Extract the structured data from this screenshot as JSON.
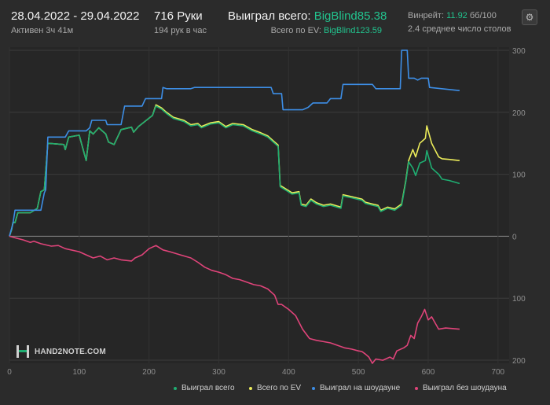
{
  "header": {
    "date_range": "28.04.2022 - 29.04.2022",
    "active_time": "Активен 3ч 41м",
    "hands": "716 Руки",
    "hands_per_hour": "194 рук в час",
    "won_total_label": "Выиграл всего:",
    "won_total_value": "BigBlind85.38",
    "ev_total_label": "Всего по EV:",
    "ev_total_value": "BigBlind123.59",
    "winrate_label": "Винрейт:",
    "winrate_value": "11.92",
    "winrate_unit": "бб/100",
    "avg_tables": "2.4 среднее число столов",
    "settings_icon": "gear-icon"
  },
  "logo": {
    "text": "HAND2NOTE.COM"
  },
  "colors": {
    "won_total": "#1fae72",
    "ev": "#ecec5a",
    "showdown": "#3d8ee6",
    "non_showdown": "#e0447a",
    "background": "#2b2b2b",
    "plot_bg": "#262626"
  },
  "chart_data": {
    "type": "line",
    "title": "",
    "xlabel": "",
    "ylabel": "",
    "xlim": [
      0,
      716
    ],
    "ylim": [
      -205,
      305
    ],
    "x_ticks": [
      0,
      100,
      200,
      300,
      400,
      500,
      600,
      700
    ],
    "y_ticks": [
      {
        "value": 300,
        "label": "300"
      },
      {
        "value": 200,
        "label": "200"
      },
      {
        "value": 100,
        "label": "100"
      },
      {
        "value": 0,
        "label": "0"
      },
      {
        "value": -100,
        "label": "100"
      },
      {
        "value": -200,
        "label": "200"
      }
    ],
    "grid": true,
    "legend_position": "bottom",
    "series": [
      {
        "name": "Выиграл всего",
        "color": "#1fae72",
        "points": [
          [
            0,
            0
          ],
          [
            3,
            10
          ],
          [
            5,
            22
          ],
          [
            8,
            22
          ],
          [
            12,
            38
          ],
          [
            30,
            38
          ],
          [
            40,
            45
          ],
          [
            45,
            72
          ],
          [
            50,
            75
          ],
          [
            52,
            105
          ],
          [
            55,
            150
          ],
          [
            78,
            148
          ],
          [
            80,
            140
          ],
          [
            85,
            160
          ],
          [
            100,
            163
          ],
          [
            110,
            122
          ],
          [
            115,
            170
          ],
          [
            120,
            165
          ],
          [
            128,
            175
          ],
          [
            138,
            165
          ],
          [
            142,
            152
          ],
          [
            150,
            148
          ],
          [
            160,
            172
          ],
          [
            175,
            176
          ],
          [
            178,
            168
          ],
          [
            185,
            177
          ],
          [
            205,
            195
          ],
          [
            210,
            210
          ],
          [
            218,
            205
          ],
          [
            225,
            198
          ],
          [
            235,
            190
          ],
          [
            250,
            185
          ],
          [
            260,
            178
          ],
          [
            270,
            180
          ],
          [
            275,
            175
          ],
          [
            288,
            181
          ],
          [
            300,
            183
          ],
          [
            310,
            175
          ],
          [
            320,
            180
          ],
          [
            335,
            178
          ],
          [
            348,
            170
          ],
          [
            360,
            165
          ],
          [
            370,
            160
          ],
          [
            380,
            150
          ],
          [
            385,
            145
          ],
          [
            388,
            80
          ],
          [
            395,
            75
          ],
          [
            405,
            68
          ],
          [
            415,
            70
          ],
          [
            418,
            50
          ],
          [
            425,
            48
          ],
          [
            432,
            58
          ],
          [
            440,
            52
          ],
          [
            450,
            48
          ],
          [
            460,
            50
          ],
          [
            475,
            45
          ],
          [
            478,
            65
          ],
          [
            490,
            62
          ],
          [
            505,
            58
          ],
          [
            510,
            53
          ],
          [
            520,
            50
          ],
          [
            528,
            48
          ],
          [
            532,
            40
          ],
          [
            542,
            45
          ],
          [
            552,
            42
          ],
          [
            562,
            50
          ],
          [
            568,
            88
          ],
          [
            572,
            120
          ],
          [
            578,
            110
          ],
          [
            582,
            98
          ],
          [
            588,
            118
          ],
          [
            596,
            122
          ],
          [
            598,
            138
          ],
          [
            605,
            110
          ],
          [
            615,
            100
          ],
          [
            620,
            92
          ],
          [
            630,
            90
          ],
          [
            645,
            85
          ]
        ]
      },
      {
        "name": "Всего по EV",
        "color": "#ecec5a",
        "points": [
          [
            0,
            0
          ],
          [
            3,
            10
          ],
          [
            5,
            22
          ],
          [
            8,
            22
          ],
          [
            12,
            38
          ],
          [
            30,
            38
          ],
          [
            40,
            45
          ],
          [
            45,
            72
          ],
          [
            50,
            75
          ],
          [
            52,
            105
          ],
          [
            55,
            150
          ],
          [
            78,
            148
          ],
          [
            80,
            140
          ],
          [
            85,
            160
          ],
          [
            100,
            163
          ],
          [
            110,
            122
          ],
          [
            115,
            170
          ],
          [
            120,
            165
          ],
          [
            128,
            175
          ],
          [
            138,
            165
          ],
          [
            142,
            152
          ],
          [
            150,
            148
          ],
          [
            160,
            172
          ],
          [
            175,
            176
          ],
          [
            178,
            168
          ],
          [
            185,
            177
          ],
          [
            205,
            195
          ],
          [
            210,
            212
          ],
          [
            218,
            207
          ],
          [
            225,
            200
          ],
          [
            235,
            192
          ],
          [
            250,
            187
          ],
          [
            260,
            180
          ],
          [
            270,
            182
          ],
          [
            275,
            177
          ],
          [
            288,
            183
          ],
          [
            300,
            185
          ],
          [
            310,
            177
          ],
          [
            320,
            182
          ],
          [
            335,
            180
          ],
          [
            348,
            172
          ],
          [
            360,
            167
          ],
          [
            370,
            162
          ],
          [
            380,
            152
          ],
          [
            385,
            147
          ],
          [
            388,
            82
          ],
          [
            395,
            77
          ],
          [
            405,
            70
          ],
          [
            415,
            72
          ],
          [
            418,
            52
          ],
          [
            425,
            50
          ],
          [
            432,
            60
          ],
          [
            440,
            54
          ],
          [
            450,
            50
          ],
          [
            460,
            52
          ],
          [
            475,
            47
          ],
          [
            478,
            67
          ],
          [
            490,
            64
          ],
          [
            505,
            60
          ],
          [
            510,
            55
          ],
          [
            520,
            52
          ],
          [
            528,
            50
          ],
          [
            532,
            42
          ],
          [
            542,
            47
          ],
          [
            552,
            44
          ],
          [
            562,
            52
          ],
          [
            568,
            90
          ],
          [
            572,
            122
          ],
          [
            578,
            140
          ],
          [
            582,
            128
          ],
          [
            588,
            150
          ],
          [
            596,
            158
          ],
          [
            598,
            178
          ],
          [
            605,
            150
          ],
          [
            615,
            128
          ],
          [
            620,
            125
          ],
          [
            630,
            124
          ],
          [
            645,
            122
          ]
        ]
      },
      {
        "name": "Выиграл на шоудауне",
        "color": "#3d8ee6",
        "points": [
          [
            0,
            0
          ],
          [
            5,
            20
          ],
          [
            8,
            42
          ],
          [
            45,
            42
          ],
          [
            50,
            70
          ],
          [
            52,
            75
          ],
          [
            55,
            160
          ],
          [
            80,
            160
          ],
          [
            85,
            170
          ],
          [
            110,
            170
          ],
          [
            115,
            175
          ],
          [
            118,
            187
          ],
          [
            138,
            187
          ],
          [
            140,
            180
          ],
          [
            160,
            180
          ],
          [
            165,
            210
          ],
          [
            190,
            210
          ],
          [
            195,
            222
          ],
          [
            218,
            222
          ],
          [
            220,
            240
          ],
          [
            225,
            238
          ],
          [
            260,
            238
          ],
          [
            265,
            240
          ],
          [
            375,
            240
          ],
          [
            378,
            230
          ],
          [
            390,
            230
          ],
          [
            392,
            204
          ],
          [
            420,
            204
          ],
          [
            428,
            208
          ],
          [
            435,
            215
          ],
          [
            455,
            215
          ],
          [
            460,
            222
          ],
          [
            475,
            222
          ],
          [
            478,
            245
          ],
          [
            520,
            245
          ],
          [
            525,
            238
          ],
          [
            560,
            238
          ],
          [
            562,
            300
          ],
          [
            570,
            300
          ],
          [
            572,
            255
          ],
          [
            580,
            255
          ],
          [
            585,
            252
          ],
          [
            590,
            255
          ],
          [
            600,
            255
          ],
          [
            602,
            240
          ],
          [
            645,
            235
          ]
        ]
      },
      {
        "name": "Выиграл без шоудауна",
        "color": "#e0447a",
        "points": [
          [
            0,
            0
          ],
          [
            10,
            -3
          ],
          [
            20,
            -6
          ],
          [
            30,
            -10
          ],
          [
            35,
            -8
          ],
          [
            45,
            -12
          ],
          [
            60,
            -16
          ],
          [
            70,
            -15
          ],
          [
            80,
            -20
          ],
          [
            100,
            -25
          ],
          [
            110,
            -30
          ],
          [
            120,
            -35
          ],
          [
            130,
            -32
          ],
          [
            140,
            -38
          ],
          [
            150,
            -35
          ],
          [
            160,
            -38
          ],
          [
            175,
            -40
          ],
          [
            180,
            -35
          ],
          [
            190,
            -30
          ],
          [
            200,
            -20
          ],
          [
            210,
            -15
          ],
          [
            220,
            -22
          ],
          [
            230,
            -25
          ],
          [
            245,
            -30
          ],
          [
            260,
            -35
          ],
          [
            270,
            -42
          ],
          [
            280,
            -50
          ],
          [
            290,
            -55
          ],
          [
            300,
            -58
          ],
          [
            310,
            -62
          ],
          [
            320,
            -68
          ],
          [
            330,
            -70
          ],
          [
            340,
            -74
          ],
          [
            350,
            -78
          ],
          [
            360,
            -80
          ],
          [
            370,
            -85
          ],
          [
            380,
            -95
          ],
          [
            385,
            -110
          ],
          [
            390,
            -110
          ],
          [
            400,
            -118
          ],
          [
            410,
            -128
          ],
          [
            420,
            -150
          ],
          [
            430,
            -165
          ],
          [
            440,
            -168
          ],
          [
            450,
            -170
          ],
          [
            460,
            -172
          ],
          [
            470,
            -176
          ],
          [
            480,
            -180
          ],
          [
            490,
            -182
          ],
          [
            500,
            -185
          ],
          [
            505,
            -186
          ],
          [
            510,
            -190
          ],
          [
            515,
            -195
          ],
          [
            520,
            -205
          ],
          [
            525,
            -198
          ],
          [
            535,
            -200
          ],
          [
            545,
            -195
          ],
          [
            550,
            -198
          ],
          [
            555,
            -185
          ],
          [
            565,
            -180
          ],
          [
            570,
            -176
          ],
          [
            575,
            -160
          ],
          [
            580,
            -165
          ],
          [
            585,
            -140
          ],
          [
            590,
            -130
          ],
          [
            595,
            -118
          ],
          [
            600,
            -135
          ],
          [
            605,
            -130
          ],
          [
            615,
            -150
          ],
          [
            625,
            -148
          ],
          [
            645,
            -150
          ]
        ]
      }
    ]
  }
}
